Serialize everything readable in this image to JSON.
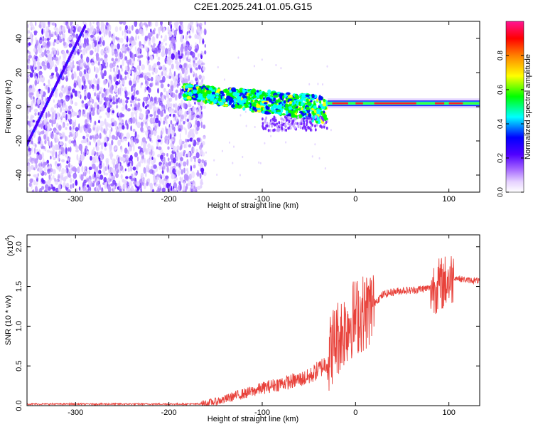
{
  "title": "C2E1.2025.241.01.05.G15",
  "chart_data": [
    {
      "type": "heatmap",
      "xlabel": "Height of straight line (km)",
      "ylabel": "Frequency (Hz)",
      "xlim": [
        -352,
        133
      ],
      "ylim": [
        -50,
        50
      ],
      "x_ticks": [
        -300,
        -200,
        -100,
        0,
        100
      ],
      "y_ticks": [
        -40,
        -20,
        0,
        20,
        40
      ],
      "x_tick_labels": [
        "-300",
        "-200",
        "-100",
        "0",
        "100"
      ],
      "y_tick_labels": [
        "-40",
        "-20",
        "0",
        "20",
        "40"
      ],
      "colorbar": {
        "label": "Normalized spectral amplitude",
        "range": [
          0,
          1
        ],
        "ticks": [
          0.0,
          0.2,
          0.4,
          0.6,
          0.8
        ],
        "tick_labels": [
          "0.0",
          "0.2",
          "0.4",
          "0.6",
          "0.8"
        ],
        "colors": [
          "#ffffff",
          "#e6d2ff",
          "#a060ff",
          "#5000ff",
          "#0000ff",
          "#00ffff",
          "#00ff00",
          "#ffff00",
          "#ff8000",
          "#ff0000",
          "#ff1493"
        ]
      },
      "features": {
        "noise_region_x": [
          -352,
          -165
        ],
        "drift_line": {
          "x": [
            -352,
            -290
          ],
          "y": [
            -22,
            47
          ]
        },
        "descending_band": {
          "x": [
            -185,
            -30
          ],
          "y": [
            9,
            -2
          ]
        },
        "tone_line": {
          "x": [
            -30,
            133
          ],
          "y": [
            2,
            2
          ]
        }
      }
    },
    {
      "type": "line",
      "xlabel": "Height of straight line (km)",
      "ylabel": "SNR (10 * v/v)",
      "y_multiplier": "(x10",
      "y_multiplier_exp": "4",
      "y_multiplier_close": ")",
      "xlim": [
        -352,
        133
      ],
      "ylim": [
        0,
        2.15
      ],
      "x_ticks": [
        -300,
        -200,
        -100,
        0,
        100
      ],
      "y_ticks": [
        0.0,
        0.5,
        1.0,
        1.5,
        2.0
      ],
      "x_tick_labels": [
        "-300",
        "-200",
        "-100",
        "0",
        "100"
      ],
      "y_tick_labels": [
        "0.0",
        "0.5",
        "1.0",
        "1.5",
        "2.0"
      ],
      "color": "#e8413a",
      "series": [
        {
          "x": [
            -352,
            -300,
            -250,
            -200,
            -170,
            -160,
            -150,
            -140,
            -130,
            -120,
            -110,
            -100,
            -90,
            -80,
            -70,
            -60,
            -50,
            -40,
            -30,
            -25,
            -20,
            -15,
            -10,
            -5,
            0,
            5,
            10,
            15,
            20,
            25,
            30,
            40,
            50,
            60,
            70,
            80,
            85,
            90,
            95,
            100,
            105,
            110,
            120,
            133
          ],
          "y": [
            0.02,
            0.02,
            0.02,
            0.02,
            0.02,
            0.03,
            0.05,
            0.08,
            0.12,
            0.15,
            0.18,
            0.22,
            0.25,
            0.28,
            0.3,
            0.33,
            0.36,
            0.45,
            0.55,
            0.75,
            0.85,
            0.92,
            1.0,
            1.08,
            1.12,
            1.15,
            1.18,
            1.22,
            1.3,
            1.35,
            1.4,
            1.43,
            1.45,
            1.45,
            1.47,
            1.48,
            1.5,
            1.52,
            1.55,
            1.58,
            1.62,
            1.6,
            1.58,
            1.57
          ]
        }
      ]
    }
  ]
}
